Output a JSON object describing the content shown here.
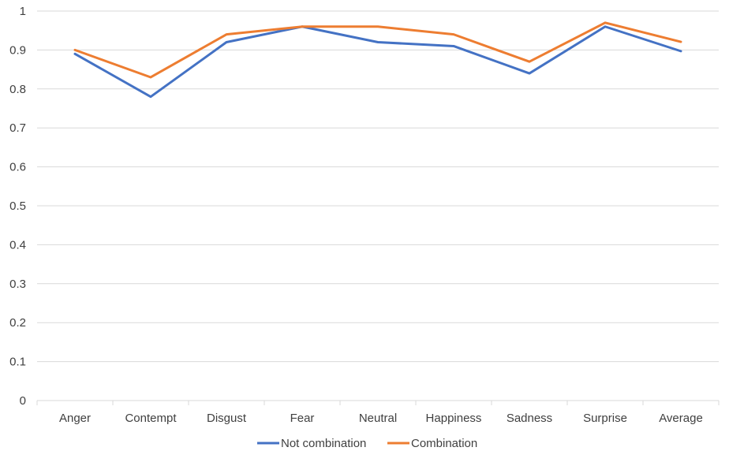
{
  "chart_data": {
    "type": "line",
    "title": "",
    "xlabel": "",
    "ylabel": "",
    "categories": [
      "Anger",
      "Contempt",
      "Disgust",
      "Fear",
      "Neutral",
      "Happiness",
      "Sadness",
      "Surprise",
      "Average"
    ],
    "ylim": [
      0,
      1
    ],
    "yticks": [
      "0",
      "0.1",
      "0.2",
      "0.3",
      "0.4",
      "0.5",
      "0.6",
      "0.7",
      "0.8",
      "0.9",
      "1"
    ],
    "grid": true,
    "legend_position": "bottom",
    "series": [
      {
        "name": "Not combination",
        "color": "#4472C4",
        "values": [
          0.89,
          0.78,
          0.92,
          0.96,
          0.92,
          0.91,
          0.84,
          0.96,
          0.897
        ]
      },
      {
        "name": "Combination",
        "color": "#ED7D31",
        "values": [
          0.9,
          0.83,
          0.94,
          0.96,
          0.96,
          0.94,
          0.87,
          0.97,
          0.921
        ]
      }
    ]
  }
}
